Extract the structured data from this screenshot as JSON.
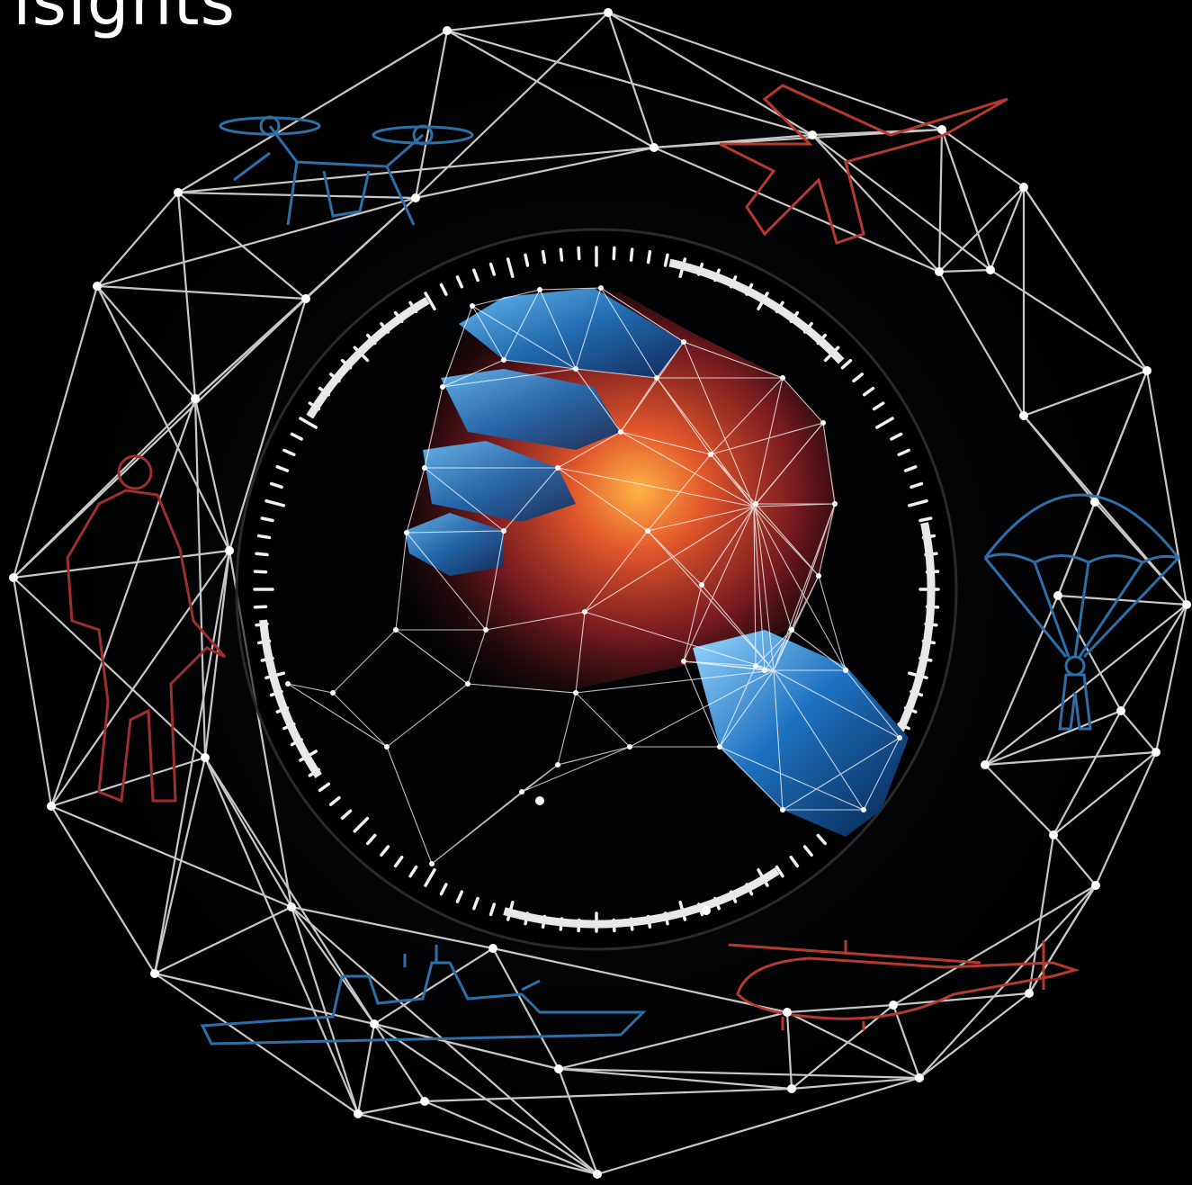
{
  "headline": "isights",
  "palette": {
    "background": "#000000",
    "mesh_line": "#d9d9d9",
    "node": "#ffffff",
    "accent_blue": "#1f7fc4",
    "accent_red": "#c4432f",
    "glow_orange": "#ff8a2a"
  },
  "icons": [
    "drone-silhouette",
    "fighter-jet-silhouette",
    "soldier-silhouette",
    "parachutist-silhouette",
    "warship-silhouette",
    "helicopter-silhouette",
    "polygonal-fist-icon"
  ]
}
